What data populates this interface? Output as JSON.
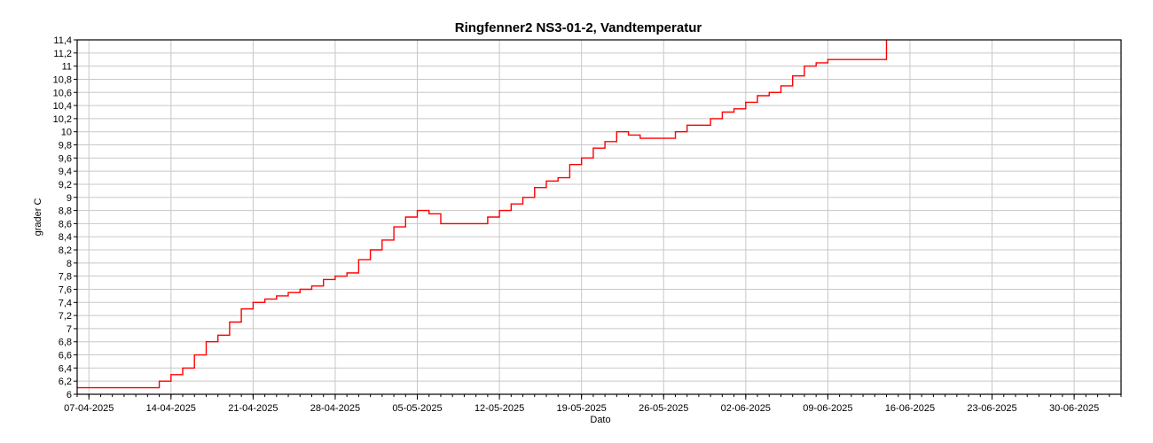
{
  "chart_data": {
    "type": "line",
    "title": "Ringfenner2 NS3-01-2, Vandtemperatur",
    "xlabel": "Dato",
    "ylabel": "grader C",
    "x_ticks": [
      "07-04-2025",
      "14-04-2025",
      "21-04-2025",
      "28-04-2025",
      "05-05-2025",
      "12-05-2025",
      "19-05-2025",
      "26-05-2025",
      "02-06-2025",
      "09-06-2025",
      "16-06-2025",
      "23-06-2025",
      "30-06-2025"
    ],
    "y_ticks": [
      "6",
      "6,2",
      "6,4",
      "6,6",
      "6,8",
      "7",
      "7,2",
      "7,4",
      "7,6",
      "7,8",
      "8",
      "8,2",
      "8,4",
      "8,6",
      "8,8",
      "9",
      "9,2",
      "9,4",
      "9,6",
      "9,8",
      "10",
      "10,2",
      "10,4",
      "10,6",
      "10,8",
      "11",
      "11,2",
      "11,4"
    ],
    "xlim": [
      "2025-04-06",
      "2025-07-04"
    ],
    "ylim": [
      6,
      11.4
    ],
    "grid": true,
    "legend": "none",
    "series": [
      {
        "color": "#ff0000",
        "x": [
          "2025-04-06",
          "2025-04-08",
          "2025-04-09",
          "2025-04-10",
          "2025-04-11",
          "2025-04-12",
          "2025-04-13",
          "2025-04-14",
          "2025-04-15",
          "2025-04-16",
          "2025-04-17",
          "2025-04-18",
          "2025-04-19",
          "2025-04-20",
          "2025-04-21",
          "2025-04-22",
          "2025-04-23",
          "2025-04-24",
          "2025-04-25",
          "2025-04-26",
          "2025-04-27",
          "2025-04-28",
          "2025-04-29",
          "2025-04-30",
          "2025-05-01",
          "2025-05-02",
          "2025-05-03",
          "2025-05-04",
          "2025-05-05",
          "2025-05-06",
          "2025-05-07",
          "2025-05-08",
          "2025-05-09",
          "2025-05-10",
          "2025-05-11",
          "2025-05-12",
          "2025-05-13",
          "2025-05-14",
          "2025-05-15",
          "2025-05-16",
          "2025-05-17",
          "2025-05-18",
          "2025-05-19",
          "2025-05-20",
          "2025-05-21",
          "2025-05-22",
          "2025-05-23",
          "2025-05-24",
          "2025-05-25",
          "2025-05-26",
          "2025-05-27",
          "2025-05-28",
          "2025-05-29",
          "2025-05-30",
          "2025-05-31",
          "2025-06-01",
          "2025-06-02",
          "2025-06-03",
          "2025-06-04",
          "2025-06-05",
          "2025-06-06",
          "2025-06-07",
          "2025-06-08",
          "2025-06-09",
          "2025-06-10",
          "2025-06-11",
          "2025-06-12",
          "2025-06-13",
          "2025-06-14"
        ],
        "y": [
          6.1,
          6.1,
          6.1,
          6.1,
          6.1,
          6.1,
          6.2,
          6.3,
          6.4,
          6.6,
          6.8,
          6.9,
          7.1,
          7.3,
          7.4,
          7.45,
          7.5,
          7.55,
          7.6,
          7.65,
          7.75,
          7.8,
          7.85,
          8.05,
          8.2,
          8.35,
          8.55,
          8.7,
          8.8,
          8.75,
          8.6,
          8.6,
          8.6,
          8.6,
          8.7,
          8.8,
          8.9,
          9.0,
          9.15,
          9.25,
          9.3,
          9.5,
          9.6,
          9.75,
          9.85,
          10.0,
          9.95,
          9.9,
          9.9,
          9.9,
          10.0,
          10.1,
          10.1,
          10.2,
          10.3,
          10.35,
          10.45,
          10.55,
          10.6,
          10.7,
          10.85,
          11.0,
          11.05,
          11.1,
          11.1,
          11.1,
          11.1,
          11.1,
          11.45
        ]
      }
    ]
  }
}
